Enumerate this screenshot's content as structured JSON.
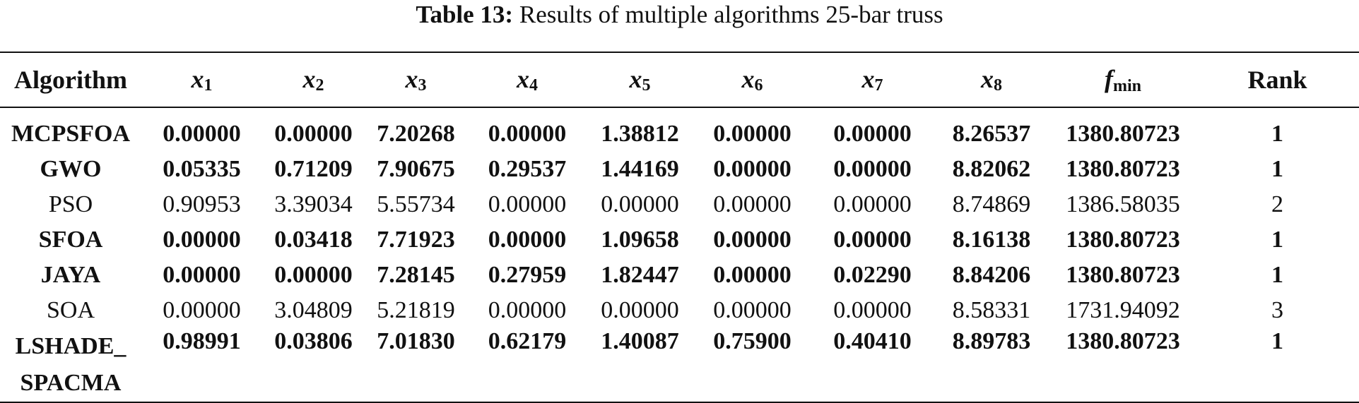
{
  "caption": {
    "label": "Table 13:",
    "text": "Results of multiple algorithms 25-bar truss"
  },
  "table": {
    "headers": {
      "algorithm": "Algorithm",
      "x": [
        {
          "base": "x",
          "sub": "1"
        },
        {
          "base": "x",
          "sub": "2"
        },
        {
          "base": "x",
          "sub": "3"
        },
        {
          "base": "x",
          "sub": "4"
        },
        {
          "base": "x",
          "sub": "5"
        },
        {
          "base": "x",
          "sub": "6"
        },
        {
          "base": "x",
          "sub": "7"
        },
        {
          "base": "x",
          "sub": "8"
        }
      ],
      "fmin": {
        "base": "f",
        "sub": "min"
      },
      "rank": "Rank"
    },
    "rows": [
      {
        "algorithm": "MCPSFOA",
        "bold": true,
        "values": [
          "0.00000",
          "0.00000",
          "7.20268",
          "0.00000",
          "1.38812",
          "0.00000",
          "0.00000",
          "8.26537"
        ],
        "fmin": "1380.80723",
        "rank": "1"
      },
      {
        "algorithm": "GWO",
        "bold": true,
        "values": [
          "0.05335",
          "0.71209",
          "7.90675",
          "0.29537",
          "1.44169",
          "0.00000",
          "0.00000",
          "8.82062"
        ],
        "fmin": "1380.80723",
        "rank": "1"
      },
      {
        "algorithm": "PSO",
        "bold": false,
        "values": [
          "0.90953",
          "3.39034",
          "5.55734",
          "0.00000",
          "0.00000",
          "0.00000",
          "0.00000",
          "8.74869"
        ],
        "fmin": "1386.58035",
        "rank": "2"
      },
      {
        "algorithm": "SFOA",
        "bold": true,
        "values": [
          "0.00000",
          "0.03418",
          "7.71923",
          "0.00000",
          "1.09658",
          "0.00000",
          "0.00000",
          "8.16138"
        ],
        "fmin": "1380.80723",
        "rank": "1"
      },
      {
        "algorithm": "JAYA",
        "bold": true,
        "values": [
          "0.00000",
          "0.00000",
          "7.28145",
          "0.27959",
          "1.82447",
          "0.00000",
          "0.02290",
          "8.84206"
        ],
        "fmin": "1380.80723",
        "rank": "1"
      },
      {
        "algorithm": "SOA",
        "bold": false,
        "values": [
          "0.00000",
          "3.04809",
          "5.21819",
          "0.00000",
          "0.00000",
          "0.00000",
          "0.00000",
          "8.58331"
        ],
        "fmin": "1731.94092",
        "rank": "3"
      },
      {
        "algorithm": "LSHADE_ SPACMA",
        "algorithm_lines": [
          "LSHADE_",
          "SPACMA"
        ],
        "bold": true,
        "values": [
          "0.98991",
          "0.03806",
          "7.01830",
          "0.62179",
          "1.40087",
          "0.75900",
          "0.40410",
          "8.89783"
        ],
        "fmin": "1380.80723",
        "rank": "1"
      }
    ]
  }
}
